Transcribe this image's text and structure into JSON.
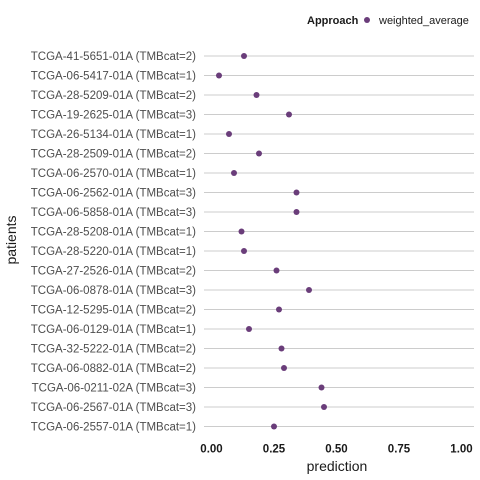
{
  "chart_data": {
    "type": "scatter",
    "xlabel": "prediction",
    "ylabel": "patients",
    "xlim": [
      -0.03,
      1.05
    ],
    "xticks": [
      0.0,
      0.25,
      0.5,
      0.75,
      1.0
    ],
    "xtick_labels": [
      "0.00",
      "0.25",
      "0.50",
      "0.75",
      "1.00"
    ],
    "grid": "horizontal",
    "legend": {
      "title": "Approach",
      "position": "top-right",
      "entries": [
        {
          "name": "weighted_average",
          "color": "#6a3d7a"
        }
      ]
    },
    "categories": [
      "TCGA-41-5651-01A (TMBcat=2)",
      "TCGA-06-5417-01A (TMBcat=1)",
      "TCGA-28-5209-01A (TMBcat=2)",
      "TCGA-19-2625-01A (TMBcat=3)",
      "TCGA-26-5134-01A (TMBcat=1)",
      "TCGA-28-2509-01A (TMBcat=2)",
      "TCGA-06-2570-01A (TMBcat=1)",
      "TCGA-06-2562-01A (TMBcat=3)",
      "TCGA-06-5858-01A (TMBcat=3)",
      "TCGA-28-5208-01A (TMBcat=1)",
      "TCGA-28-5220-01A (TMBcat=1)",
      "TCGA-27-2526-01A (TMBcat=2)",
      "TCGA-06-0878-01A (TMBcat=3)",
      "TCGA-12-5295-01A (TMBcat=2)",
      "TCGA-06-0129-01A (TMBcat=1)",
      "TCGA-32-5222-01A (TMBcat=2)",
      "TCGA-06-0882-01A (TMBcat=2)",
      "TCGA-06-0211-02A (TMBcat=3)",
      "TCGA-06-2567-01A (TMBcat=3)",
      "TCGA-06-2557-01A (TMBcat=1)"
    ],
    "series": [
      {
        "name": "weighted_average",
        "values": [
          0.13,
          0.03,
          0.18,
          0.31,
          0.07,
          0.19,
          0.09,
          0.34,
          0.34,
          0.12,
          0.13,
          0.26,
          0.39,
          0.27,
          0.15,
          0.28,
          0.29,
          0.44,
          0.45,
          0.25
        ]
      }
    ]
  }
}
